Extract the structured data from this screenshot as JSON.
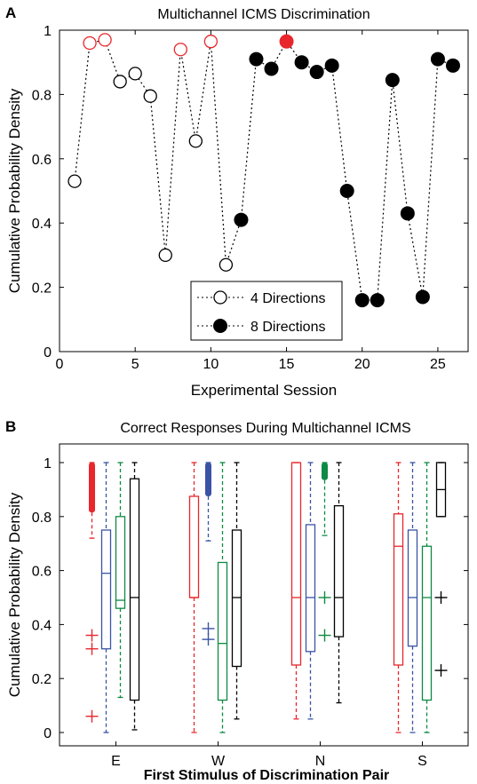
{
  "panels": [
    {
      "id": "panel-a",
      "label": "A"
    },
    {
      "id": "panel-b",
      "label": "B"
    }
  ],
  "colors": {
    "red": "#e8262b",
    "blue": "#3a53a4",
    "green": "#0d8a43",
    "black": "#000000"
  },
  "chart_data": [
    {
      "type": "scatter",
      "title": "Multichannel ICMS Discrimination",
      "xlabel": "Experimental Session",
      "ylabel": "Cumulative Probability Density",
      "xlim": [
        0,
        27
      ],
      "ylim": [
        0,
        1
      ],
      "xticks": [
        0,
        5,
        10,
        15,
        20,
        25
      ],
      "yticks": [
        0,
        0.2,
        0.4,
        0.6,
        0.8,
        1
      ],
      "legend_position": "lower-right",
      "legend": [
        "4 Directions",
        "8 Directions"
      ],
      "line_style": "dotted",
      "x": [
        1,
        2,
        3,
        4,
        5,
        6,
        7,
        8,
        9,
        10,
        11,
        12,
        13,
        14,
        15,
        16,
        17,
        18,
        19,
        20,
        21,
        22,
        23,
        24,
        25,
        26
      ],
      "y": [
        0.53,
        0.96,
        0.97,
        0.84,
        0.865,
        0.795,
        0.3,
        0.94,
        0.655,
        0.965,
        0.27,
        0.41,
        0.91,
        0.88,
        0.965,
        0.9,
        0.87,
        0.89,
        0.5,
        0.16,
        0.16,
        0.845,
        0.43,
        0.17,
        0.91,
        0.89
      ],
      "marker": [
        "open",
        "open",
        "open",
        "open",
        "open",
        "open",
        "open",
        "open",
        "open",
        "open",
        "open",
        "filled",
        "filled",
        "filled",
        "filled",
        "filled",
        "filled",
        "filled",
        "filled",
        "filled",
        "filled",
        "filled",
        "filled",
        "filled",
        "filled",
        "filled"
      ],
      "highlight": [
        "none",
        "red",
        "red",
        "none",
        "none",
        "none",
        "none",
        "red",
        "none",
        "red",
        "none",
        "none",
        "none",
        "none",
        "red",
        "none",
        "none",
        "none",
        "none",
        "none",
        "none",
        "none",
        "none",
        "none",
        "none",
        "none"
      ]
    },
    {
      "type": "box",
      "title": "Correct Responses During Multichannel ICMS",
      "xlabel": "First Stimulus of Discrimination Pair",
      "ylabel": "Cumulative Probability Density",
      "ylim": [
        0,
        1
      ],
      "yticks": [
        0,
        0.2,
        0.4,
        0.6,
        0.8,
        1
      ],
      "categories": [
        "E",
        "W",
        "N",
        "S"
      ],
      "box_colors": [
        "red",
        "blue",
        "green",
        "black"
      ],
      "groups": [
        {
          "category": "E",
          "boxes": [
            {
              "color": "red",
              "q1": 0.815,
              "median": 0.905,
              "q3": 1.0,
              "wlow": 0.72,
              "whigh": 1.0,
              "outliers": [
                0.36,
                0.31,
                0.06
              ]
            },
            {
              "color": "blue",
              "q1": 0.31,
              "median": 0.59,
              "q3": 0.75,
              "wlow": 0.0,
              "whigh": 1.0,
              "outliers": []
            },
            {
              "color": "green",
              "q1": 0.46,
              "median": 0.49,
              "q3": 0.8,
              "wlow": 0.13,
              "whigh": 1.0,
              "outliers": []
            },
            {
              "color": "black",
              "q1": 0.12,
              "median": 0.5,
              "q3": 0.94,
              "wlow": 0.01,
              "whigh": 1.0,
              "outliers": []
            }
          ]
        },
        {
          "category": "W",
          "boxes": [
            {
              "color": "red",
              "q1": 0.5,
              "median": 0.5,
              "q3": 0.875,
              "wlow": 0.0,
              "whigh": 1.0,
              "outliers": []
            },
            {
              "color": "blue",
              "q1": 0.875,
              "median": 0.94,
              "q3": 1.0,
              "wlow": 0.71,
              "whigh": 1.0,
              "outliers": [
                0.385,
                0.345
              ]
            },
            {
              "color": "green",
              "q1": 0.12,
              "median": 0.33,
              "q3": 0.63,
              "wlow": 0.0,
              "whigh": 1.0,
              "outliers": []
            },
            {
              "color": "black",
              "q1": 0.245,
              "median": 0.5,
              "q3": 0.75,
              "wlow": 0.05,
              "whigh": 1.0,
              "outliers": []
            }
          ]
        },
        {
          "category": "N",
          "boxes": [
            {
              "color": "red",
              "q1": 0.25,
              "median": 0.5,
              "q3": 1.0,
              "wlow": 0.05,
              "whigh": 1.0,
              "outliers": []
            },
            {
              "color": "blue",
              "q1": 0.3,
              "median": 0.5,
              "q3": 0.77,
              "wlow": 0.05,
              "whigh": 1.0,
              "outliers": []
            },
            {
              "color": "green",
              "q1": 0.935,
              "median": 0.94,
              "q3": 1.0,
              "wlow": 0.73,
              "whigh": 1.0,
              "outliers": [
                0.5,
                0.36
              ]
            },
            {
              "color": "black",
              "q1": 0.355,
              "median": 0.5,
              "q3": 0.84,
              "wlow": 0.11,
              "whigh": 1.0,
              "outliers": []
            }
          ]
        },
        {
          "category": "S",
          "boxes": [
            {
              "color": "red",
              "q1": 0.25,
              "median": 0.69,
              "q3": 0.81,
              "wlow": 0.0,
              "whigh": 1.0,
              "outliers": []
            },
            {
              "color": "blue",
              "q1": 0.32,
              "median": 0.5,
              "q3": 0.75,
              "wlow": 0.0,
              "whigh": 1.0,
              "outliers": []
            },
            {
              "color": "green",
              "q1": 0.12,
              "median": 0.5,
              "q3": 0.69,
              "wlow": 0.0,
              "whigh": 1.0,
              "outliers": []
            },
            {
              "color": "black",
              "q1": 0.8,
              "median": 0.9,
              "q3": 1.0,
              "wlow": 0.8,
              "whigh": 1.0,
              "outliers": [
                0.5,
                0.23
              ]
            }
          ]
        }
      ]
    }
  ]
}
